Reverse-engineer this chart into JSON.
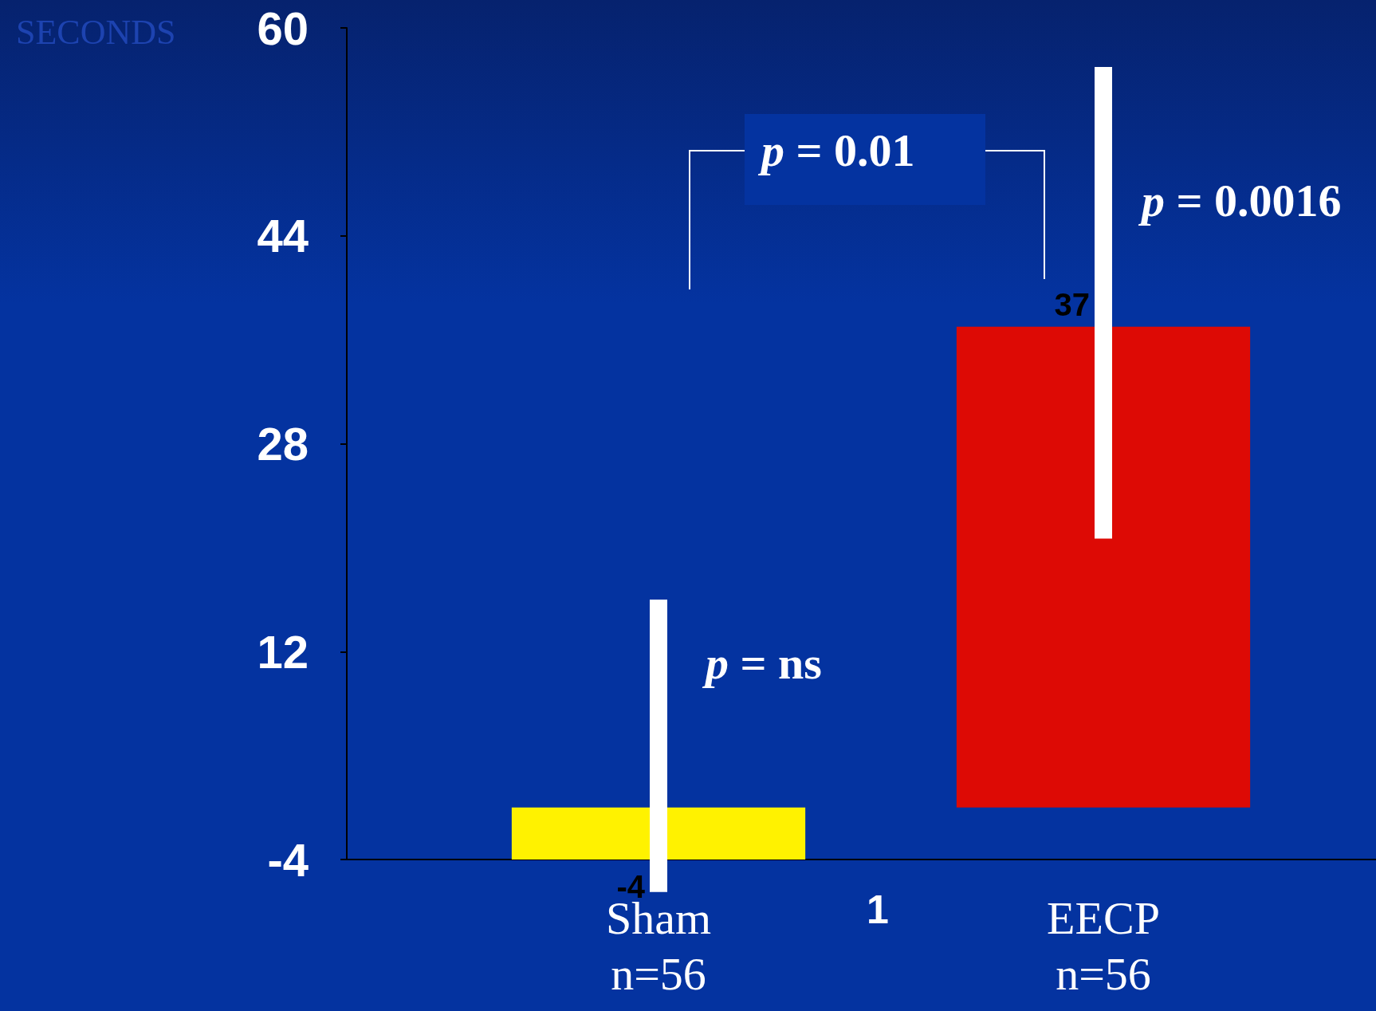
{
  "chart_data": {
    "type": "bar",
    "ylabel": "SECONDS",
    "categories": [
      "Sham\nn=56",
      "EECP\nn=56"
    ],
    "values": [
      -4,
      37
    ],
    "base": [
      0,
      0
    ],
    "colors": [
      "#fff200",
      "#dd0a05"
    ],
    "errors": [
      [
        -6.5,
        16
      ],
      [
        20.7,
        57
      ]
    ],
    "data_labels": true,
    "ylim": [
      -4,
      60
    ],
    "yticks": [
      -4,
      12,
      28,
      44,
      60
    ],
    "grid": false,
    "annotations": [
      "p = 0.01",
      "p = 0.0016",
      "p = ns",
      "1"
    ]
  }
}
